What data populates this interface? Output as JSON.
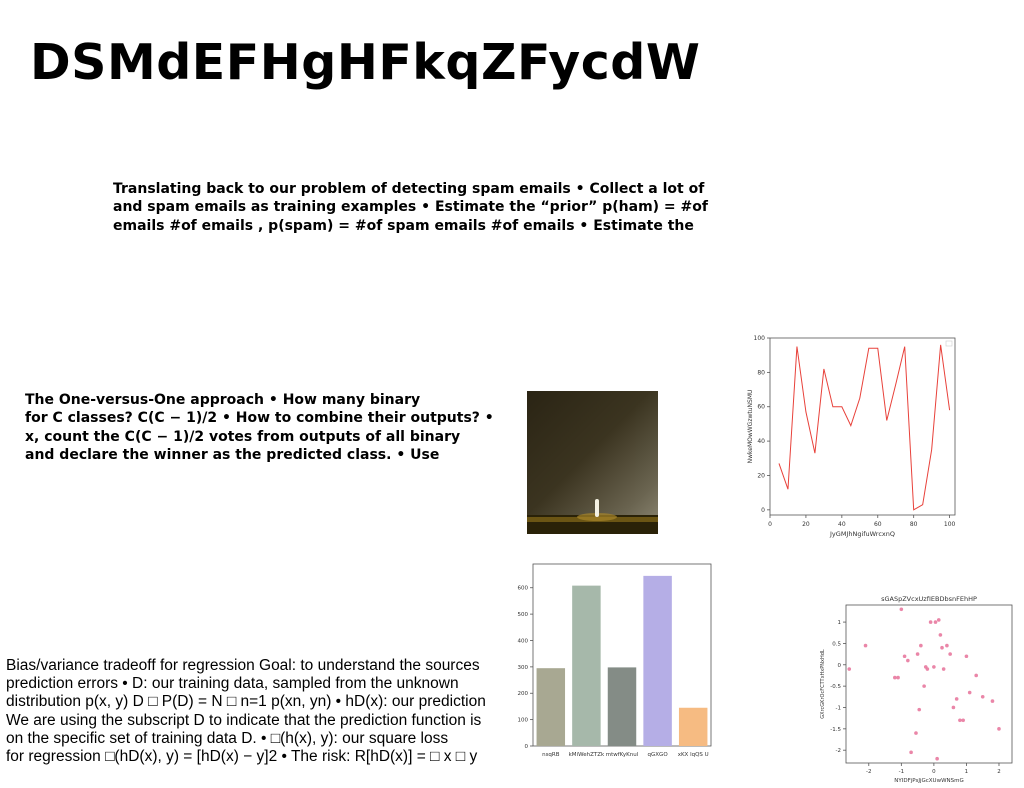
{
  "title": "DSMdEFHgHFkqZFycdW",
  "para1_lines": [
    "Translating back to our problem of detecting spam emails • Collect a lot of",
    "and spam emails as training examples • Estimate the “prior” p(ham) = #of",
    "emails #of emails , p(spam) = #of spam emails #of emails • Estimate the"
  ],
  "para2_lines": [
    "The One-versus-One approach • How many binary",
    "for C classes? C(C − 1)/2 • How to combine their outputs? •",
    "x, count the C(C − 1)/2 votes from outputs of all binary",
    "and declare the winner as the predicted class. • Use"
  ],
  "para3_lines": [
    "Bias/variance tradeoff for regression Goal: to understand the sources",
    "prediction errors • D: our training data, sampled from the unknown",
    "distribution p(x, y) D □ P(D) = N □ n=1 p(xn, yn) • hD(x): our prediction",
    "We are using the subscript D to indicate that the prediction function is",
    "on the specific set of training data D. • □(h(x), y): our square loss",
    "for regression □(hD(x), y) = [hD(x) − y]2 • The risk: R[hD(x)] = □ x □ y"
  ],
  "chart_data": [
    {
      "type": "line",
      "title": "",
      "xlabel": "JyGMJhNgifuWrcxnQ",
      "ylabel": "NwkeMOwWGzwtuNSMU",
      "xlim": [
        0,
        103
      ],
      "ylim": [
        -3,
        100
      ],
      "xticks": [
        0,
        20,
        40,
        60,
        80,
        100
      ],
      "yticks": [
        0,
        20,
        40,
        60,
        80,
        100
      ],
      "color": "#e8413a",
      "series": [
        {
          "x": [
            5,
            10,
            15,
            20,
            25,
            30,
            35,
            40,
            45,
            50,
            55,
            60,
            65,
            70,
            75,
            80,
            85,
            90,
            95,
            100
          ],
          "values": [
            27,
            12,
            95,
            57,
            33,
            82,
            60,
            60,
            49,
            65,
            94,
            94,
            52,
            73,
            95,
            0,
            3,
            35,
            96,
            58
          ]
        }
      ]
    },
    {
      "type": "bar",
      "title": "",
      "categories": [
        "nsqRB",
        "kMiWehZTZk",
        "mtwfKyKnul",
        "qGXGO",
        "xKX lqQS U"
      ],
      "values": [
        295,
        608,
        298,
        645,
        145
      ],
      "colors": [
        "#a8a892",
        "#a6b8aa",
        "#848c86",
        "#b5aee6",
        "#f6bb82"
      ],
      "ylim": [
        0,
        690
      ],
      "yticks": [
        0,
        100,
        200,
        300,
        400,
        500,
        600
      ]
    },
    {
      "type": "scatter",
      "title": "sGASpZVcxUzfIEBDbsnFEhHP",
      "xlabel": "NYIDFjPsJjGcXUwWNSmG",
      "ylabel": "GXrcGKrOcFCTTxHxPNxHdL",
      "xlim": [
        -2.7,
        2.4
      ],
      "ylim": [
        -2.3,
        1.4
      ],
      "xticks": [
        -2,
        -1,
        0,
        1,
        2
      ],
      "yticks": [
        -2.0,
        -1.5,
        -1.0,
        -0.5,
        0.0,
        0.5,
        1.0
      ],
      "color": "#e8799f",
      "x": [
        -1.0,
        -2.1,
        -2.6,
        -1.2,
        -1.1,
        -0.9,
        -0.8,
        -0.5,
        -0.4,
        -0.45,
        -0.3,
        -0.25,
        -0.2,
        -0.1,
        0.0,
        0.05,
        0.15,
        0.2,
        0.25,
        0.3,
        0.4,
        0.5,
        0.6,
        0.7,
        0.8,
        0.9,
        1.0,
        1.1,
        1.3,
        1.5,
        1.8,
        2.0,
        -0.55,
        -0.7,
        0.1
      ],
      "y": [
        1.3,
        0.45,
        -0.1,
        -0.3,
        -0.3,
        0.2,
        0.1,
        0.25,
        0.45,
        -1.05,
        -0.5,
        -0.05,
        -0.1,
        1.0,
        -0.05,
        1.0,
        1.05,
        0.7,
        0.4,
        -0.1,
        0.45,
        0.25,
        -1.0,
        -0.8,
        -1.3,
        -1.3,
        0.2,
        -0.65,
        -0.25,
        -0.75,
        -0.85,
        -1.5,
        -1.6,
        -2.05,
        -2.2
      ]
    }
  ]
}
